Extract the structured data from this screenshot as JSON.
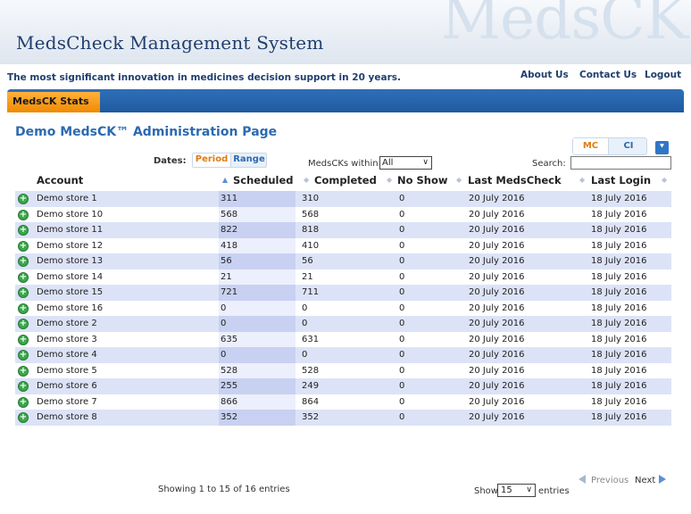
{
  "header": {
    "title": "MedsCheck Management System",
    "watermark": "MedsCK",
    "tagline": "The most significant innovation in medicines decision support in 20 years.",
    "links": [
      "About Us",
      "Contact Us",
      "Logout"
    ]
  },
  "nav": {
    "active_tab": "MedsCK Stats"
  },
  "page": {
    "title": "Demo MedsCK™ Administration Page",
    "toggle": [
      "MC",
      "CI"
    ],
    "dates_label": "Dates:",
    "date_buttons": [
      "Period",
      "Range"
    ],
    "within_label": "MedsCKs within",
    "within_value": "All",
    "search_label": "Search:",
    "search_value": ""
  },
  "table": {
    "columns": [
      "Account",
      "Scheduled",
      "Completed",
      "No Show",
      "Last MedsCheck",
      "Last Login"
    ],
    "rows": [
      [
        "Demo store 1",
        "311",
        "310",
        "0",
        "20 July 2016",
        "18 July 2016"
      ],
      [
        "Demo store 10",
        "568",
        "568",
        "0",
        "20 July 2016",
        "18 July 2016"
      ],
      [
        "Demo store 11",
        "822",
        "818",
        "0",
        "20 July 2016",
        "18 July 2016"
      ],
      [
        "Demo store 12",
        "418",
        "410",
        "0",
        "20 July 2016",
        "18 July 2016"
      ],
      [
        "Demo store 13",
        "56",
        "56",
        "0",
        "20 July 2016",
        "18 July 2016"
      ],
      [
        "Demo store 14",
        "21",
        "21",
        "0",
        "20 July 2016",
        "18 July 2016"
      ],
      [
        "Demo store 15",
        "721",
        "711",
        "0",
        "20 July 2016",
        "18 July 2016"
      ],
      [
        "Demo store 16",
        "0",
        "0",
        "0",
        "20 July 2016",
        "18 July 2016"
      ],
      [
        "Demo store 2",
        "0",
        "0",
        "0",
        "20 July 2016",
        "18 July 2016"
      ],
      [
        "Demo store 3",
        "635",
        "631",
        "0",
        "20 July 2016",
        "18 July 2016"
      ],
      [
        "Demo store 4",
        "0",
        "0",
        "0",
        "20 July 2016",
        "18 July 2016"
      ],
      [
        "Demo store 5",
        "528",
        "528",
        "0",
        "20 July 2016",
        "18 July 2016"
      ],
      [
        "Demo store 6",
        "255",
        "249",
        "0",
        "20 July 2016",
        "18 July 2016"
      ],
      [
        "Demo store 7",
        "866",
        "864",
        "0",
        "20 July 2016",
        "18 July 2016"
      ],
      [
        "Demo store 8",
        "352",
        "352",
        "0",
        "20 July 2016",
        "18 July 2016"
      ]
    ]
  },
  "footer": {
    "info": "Showing 1 to 15 of 16 entries",
    "show_label": "Show",
    "page_length": "15",
    "entries_label": "entries",
    "prev": "Previous",
    "next": "Next"
  },
  "colors": {
    "brand_blue": "#1f3f6e",
    "accent_orange": "#f08a00",
    "nav_blue": "#2f6fb8",
    "row_stripe": "#dde3f7"
  },
  "icons": {
    "expand": "double-chevron-down-icon",
    "row_detail": "plus-circle-icon"
  }
}
